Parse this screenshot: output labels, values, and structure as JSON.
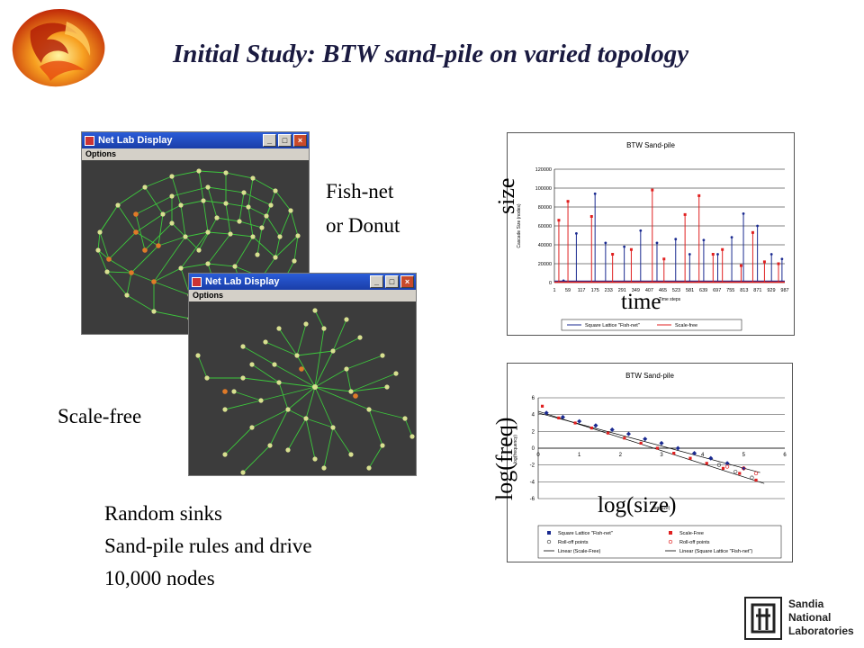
{
  "slide": {
    "title": "Initial Study: BTW sand-pile on varied topology",
    "labels": {
      "fishnet_line1": "Fish-net",
      "fishnet_line2": "or Donut",
      "scalefree": "Scale-free",
      "bullets": [
        "Random sinks",
        "Sand-pile rules and drive",
        "10,000 nodes"
      ],
      "size": "size",
      "time": "time",
      "logfreq": "log(freq)",
      "logsize": "log(size)"
    }
  },
  "windows": [
    {
      "title": "Net Lab Display",
      "menu": "Options"
    },
    {
      "title": "Net Lab Display",
      "menu": "Options"
    }
  ],
  "colors": {
    "net_bg": "#3c3c3c",
    "edge": "#3cc83c",
    "node_yellow": "#d8e090",
    "node_orange": "#e07a28",
    "series_blue": "#1a2a90",
    "series_red": "#e02020"
  },
  "chart_data": [
    {
      "type": "line",
      "title": "BTW Sand-pile",
      "ylabel": "Cascade Size (nodes)",
      "xlabel": "Time steps",
      "ylim": [
        0,
        120000
      ],
      "yticks": [
        "120000",
        "100000",
        "80000",
        "60000",
        "40000",
        "20000",
        "0"
      ],
      "xticks": [
        "1",
        "59",
        "117",
        "175",
        "233",
        "291",
        "349",
        "407",
        "465",
        "523",
        "581",
        "639",
        "697",
        "755",
        "813",
        "871",
        "929",
        "987"
      ],
      "series": [
        {
          "name": "Square Lattice \"Fish-net\"",
          "x": [
            40,
            95,
            175,
            220,
            300,
            370,
            440,
            520,
            580,
            640,
            700,
            760,
            810,
            870,
            930,
            975
          ],
          "values": [
            2000,
            52000,
            94000,
            42000,
            38000,
            55000,
            42000,
            46000,
            30000,
            45000,
            30000,
            48000,
            73000,
            60000,
            30000,
            25000
          ]
        },
        {
          "name": "Scale-free",
          "x": [
            20,
            59,
            160,
            250,
            330,
            420,
            470,
            560,
            620,
            680,
            720,
            800,
            850,
            900,
            960
          ],
          "values": [
            66000,
            86000,
            70000,
            30000,
            35000,
            98000,
            25000,
            72000,
            92000,
            30000,
            35000,
            18000,
            53000,
            22000,
            20000
          ]
        }
      ],
      "legend": "bottom"
    },
    {
      "type": "scatter",
      "title": "BTW Sand-pile",
      "ylabel": "log(frequency)",
      "xlabel": "log(size)",
      "xlim": [
        0,
        6
      ],
      "ylim": [
        -6,
        6
      ],
      "xticks": [
        "0",
        "1",
        "2",
        "3",
        "4",
        "5",
        "6"
      ],
      "yticks": [
        "6",
        "4",
        "2",
        "0",
        "-2",
        "-4",
        "-6"
      ],
      "series": [
        {
          "name": "Square Lattice \"Fish-net\"",
          "x": [
            0.2,
            0.6,
            1.0,
            1.4,
            1.8,
            2.2,
            2.6,
            3.0,
            3.4,
            3.8,
            4.2,
            4.6,
            5.0
          ],
          "values": [
            4.2,
            3.7,
            3.2,
            2.7,
            2.2,
            1.7,
            1.1,
            0.6,
            0.0,
            -0.6,
            -1.2,
            -1.8,
            -2.4
          ]
        },
        {
          "name": "Scale-Free",
          "x": [
            0.1,
            0.5,
            0.9,
            1.3,
            1.7,
            2.1,
            2.5,
            2.9,
            3.3,
            3.7,
            4.1,
            4.5,
            4.9,
            5.3
          ],
          "values": [
            5.0,
            3.6,
            3.0,
            2.4,
            1.8,
            1.2,
            0.6,
            0.0,
            -0.6,
            -1.2,
            -1.8,
            -2.4,
            -3.0,
            -3.8
          ]
        },
        {
          "name": "Roll-off points",
          "x": [
            4.4,
            4.8,
            5.2
          ],
          "values": [
            -2.0,
            -2.8,
            -3.5
          ]
        },
        {
          "name": "Roll-off points",
          "x": [
            4.6,
            5.0,
            5.3
          ],
          "values": [
            -2.2,
            -2.4,
            -3.0
          ]
        },
        {
          "name": "Linear (Scale-Free)",
          "x": [
            0,
            5.5
          ],
          "values": [
            4.4,
            -4.2
          ]
        },
        {
          "name": "Linear (Square Lattice \"Fish-net\")",
          "x": [
            0,
            5.4
          ],
          "values": [
            4.2,
            -2.9
          ]
        }
      ],
      "legend": "bottom"
    }
  ],
  "logo": {
    "text_lines": [
      "Sandia",
      "National",
      "Laboratories"
    ]
  }
}
